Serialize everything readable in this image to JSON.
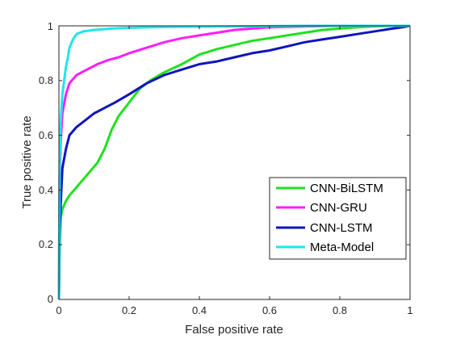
{
  "chart_data": {
    "type": "line",
    "title": "",
    "xlabel": "False positive rate",
    "ylabel": "True positive rate",
    "xlim": [
      0,
      1
    ],
    "ylim": [
      0,
      1
    ],
    "xticks": [
      "0",
      "0.2",
      "0.4",
      "0.6",
      "0.8",
      "1"
    ],
    "yticks": [
      "0",
      "0.2",
      "0.4",
      "0.6",
      "0.8",
      "1"
    ],
    "grid": false,
    "legend_position": "lower-right",
    "series": [
      {
        "name": "CNN-BiLSTM",
        "color": "#1ee21e",
        "x": [
          0,
          0.002,
          0.005,
          0.01,
          0.02,
          0.03,
          0.05,
          0.07,
          0.09,
          0.11,
          0.13,
          0.15,
          0.17,
          0.2,
          0.23,
          0.26,
          0.3,
          0.35,
          0.4,
          0.45,
          0.5,
          0.55,
          0.6,
          0.65,
          0.7,
          0.75,
          0.8,
          0.85,
          0.9,
          0.95,
          1.0
        ],
        "y": [
          0,
          0.2,
          0.3,
          0.33,
          0.36,
          0.38,
          0.41,
          0.44,
          0.47,
          0.5,
          0.55,
          0.62,
          0.67,
          0.72,
          0.77,
          0.8,
          0.83,
          0.86,
          0.895,
          0.915,
          0.93,
          0.945,
          0.955,
          0.965,
          0.975,
          0.985,
          0.99,
          0.995,
          0.998,
          1.0,
          1.0
        ]
      },
      {
        "name": "CNN-GRU",
        "color": "#ff1dff",
        "x": [
          0,
          0.002,
          0.005,
          0.01,
          0.02,
          0.03,
          0.05,
          0.08,
          0.11,
          0.14,
          0.17,
          0.2,
          0.25,
          0.3,
          0.35,
          0.4,
          0.45,
          0.5,
          0.55,
          0.6,
          0.7,
          0.8,
          0.9,
          1.0
        ],
        "y": [
          0,
          0.45,
          0.58,
          0.68,
          0.75,
          0.79,
          0.82,
          0.84,
          0.86,
          0.875,
          0.885,
          0.9,
          0.92,
          0.94,
          0.955,
          0.965,
          0.975,
          0.985,
          0.99,
          0.995,
          0.998,
          1.0,
          1.0,
          1.0
        ]
      },
      {
        "name": "CNN-LSTM",
        "color": "#0f14bf",
        "x": [
          0,
          0.002,
          0.005,
          0.01,
          0.02,
          0.03,
          0.05,
          0.07,
          0.1,
          0.13,
          0.16,
          0.2,
          0.25,
          0.3,
          0.35,
          0.4,
          0.45,
          0.5,
          0.55,
          0.6,
          0.65,
          0.7,
          0.75,
          0.8,
          0.85,
          0.9,
          0.95,
          0.98,
          1.0
        ],
        "y": [
          0,
          0.25,
          0.35,
          0.48,
          0.55,
          0.6,
          0.63,
          0.65,
          0.68,
          0.7,
          0.72,
          0.75,
          0.79,
          0.82,
          0.84,
          0.86,
          0.87,
          0.885,
          0.9,
          0.91,
          0.925,
          0.94,
          0.95,
          0.96,
          0.97,
          0.98,
          0.99,
          0.995,
          1.0
        ]
      },
      {
        "name": "Meta-Model",
        "color": "#1ee6ec",
        "x": [
          0,
          0.002,
          0.005,
          0.01,
          0.015,
          0.02,
          0.025,
          0.03,
          0.04,
          0.05,
          0.07,
          0.1,
          0.15,
          0.2,
          0.3,
          0.5,
          0.7,
          1.0
        ],
        "y": [
          0,
          0.5,
          0.65,
          0.75,
          0.8,
          0.85,
          0.88,
          0.92,
          0.95,
          0.97,
          0.98,
          0.985,
          0.99,
          0.993,
          0.996,
          0.998,
          1.0,
          1.0
        ]
      }
    ]
  }
}
